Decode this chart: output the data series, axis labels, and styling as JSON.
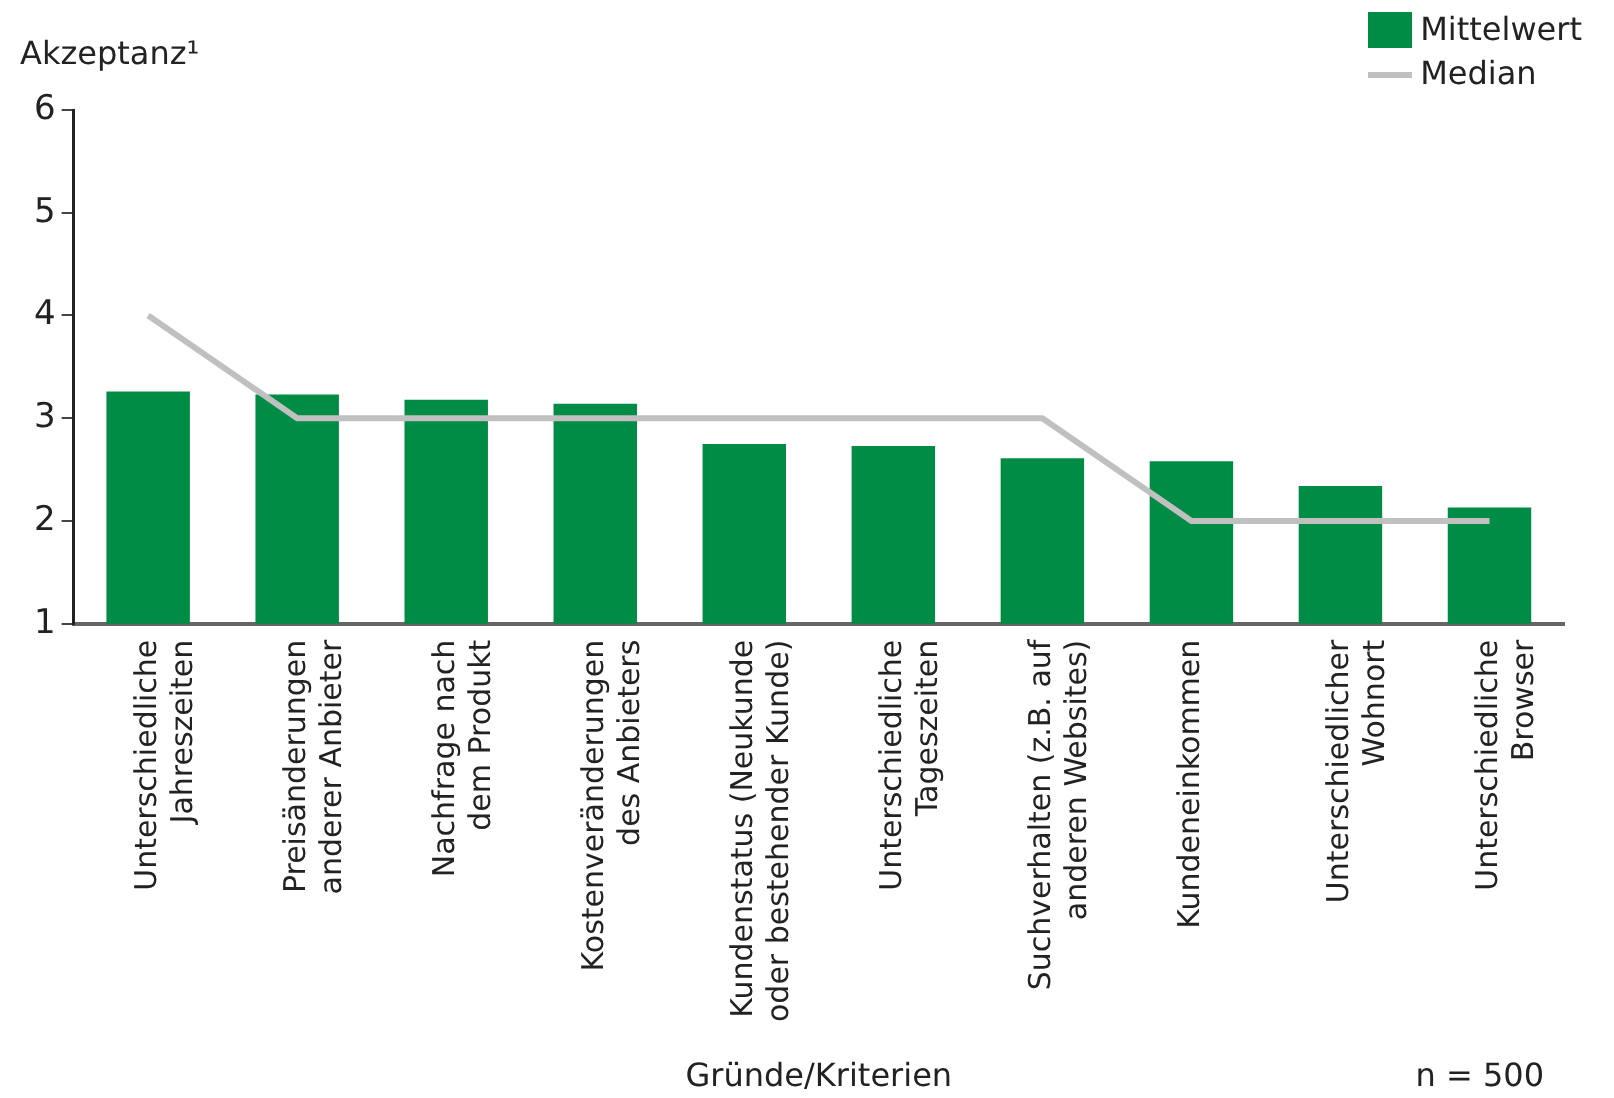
{
  "chart_data": {
    "type": "bar",
    "ylabel": "Akzeptanz¹",
    "xlabel": "Gründe/Kriterien",
    "annotations": [
      "n = 500"
    ],
    "categories": [
      "Unterschiedliche\nJahreszeiten",
      "Preisänderungen\nanderer Anbieter",
      "Nachfrage nach\ndem Produkt",
      "Kostenveränderungen\ndes Anbieters",
      "Kundenstatus (Neukunde\noder bestehender Kunde)",
      "Unterschiedliche\nTageszeiten",
      "Suchverhalten (z.B. auf\nanderen Websites)",
      "Kundeneinkommen",
      "Unterschiedlicher\nWohnort",
      "Unterschiedliche\nBrowser"
    ],
    "series": [
      {
        "name": "Mittelwert",
        "color": "#008c44",
        "values": [
          3.26,
          3.23,
          3.18,
          3.14,
          2.75,
          2.73,
          2.61,
          2.58,
          2.34,
          2.13
        ]
      },
      {
        "name": "Median",
        "type": "line",
        "color": "#c0c0c0",
        "values": [
          4,
          3,
          3,
          3,
          3,
          3,
          3,
          2,
          2,
          2
        ]
      }
    ],
    "ylim": [
      1,
      6
    ],
    "yticks": [
      1,
      2,
      3,
      4,
      5,
      6
    ],
    "grid": false,
    "legend": "top right",
    "marker": "none"
  }
}
